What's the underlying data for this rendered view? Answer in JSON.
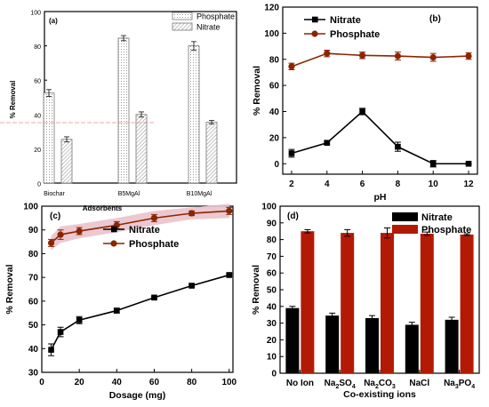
{
  "colors": {
    "nitrate": "#000000",
    "phosphate": "#8b2500",
    "nitrate_bar": "#000000",
    "phosphate_bar": "#b31a06",
    "band": "#eac2cc",
    "gridless": "none"
  },
  "chart_data": [
    {
      "panel": "(a)",
      "type": "bar",
      "xlabel": "Adsorbents",
      "ylabel": "% Removal",
      "ylim": [
        0,
        100
      ],
      "yticks": [
        0,
        20,
        40,
        60,
        80,
        100
      ],
      "grid": false,
      "legend_position": "top-right",
      "categories": [
        "Biochar",
        "B5MgAl",
        "B10MgAl"
      ],
      "series": [
        {
          "name": "Phosphate",
          "pattern": "dots",
          "values": [
            52.5,
            84.5,
            80
          ],
          "errors": [
            2,
            1.5,
            2.5
          ]
        },
        {
          "name": "Nitrate",
          "pattern": "hatch",
          "values": [
            25.5,
            40,
            35.5
          ],
          "errors": [
            1.5,
            1.5,
            1
          ]
        }
      ]
    },
    {
      "panel": "(b)",
      "type": "line",
      "xlabel": "pH",
      "ylabel": "% Removal",
      "xlim": [
        1.5,
        12.5
      ],
      "ylim": [
        -8,
        120
      ],
      "xticks": [
        2,
        4,
        6,
        8,
        10,
        12
      ],
      "yticks": [
        0,
        20,
        40,
        60,
        80,
        100,
        120
      ],
      "grid": false,
      "legend_position": "top-left",
      "x": [
        2,
        4,
        6,
        8,
        10,
        12
      ],
      "series": [
        {
          "name": "Nitrate",
          "marker": "square",
          "values": [
            8,
            16,
            40,
            13,
            0,
            0
          ],
          "errors": [
            3,
            1,
            2.5,
            3.5,
            2.5,
            0.5
          ]
        },
        {
          "name": "Phosphate",
          "marker": "circle",
          "values": [
            74.5,
            84.5,
            83,
            82.5,
            81.5,
            82.5
          ],
          "errors": [
            2.5,
            2.5,
            2.5,
            3,
            3,
            2.5
          ]
        }
      ]
    },
    {
      "panel": "(c)",
      "type": "line",
      "xlabel": "Dosage (mg)",
      "ylabel": "% Removal",
      "xlim": [
        0,
        102
      ],
      "ylim": [
        30,
        100
      ],
      "xticks": [
        0,
        20,
        40,
        60,
        80,
        100
      ],
      "yticks": [
        30,
        40,
        50,
        60,
        70,
        80,
        90,
        100
      ],
      "grid": false,
      "legend_position": "top-right",
      "x": [
        5,
        10,
        20,
        40,
        60,
        80,
        100
      ],
      "series": [
        {
          "name": "Nitrate",
          "marker": "square",
          "values": [
            39.5,
            47,
            52,
            56,
            61.5,
            66.5,
            71
          ],
          "errors": [
            2.5,
            2,
            1.5,
            1,
            0.5,
            0.5,
            0.5
          ]
        },
        {
          "name": "Phosphate",
          "marker": "circle",
          "values": [
            84.5,
            88,
            89.5,
            92,
            95,
            97,
            98
          ],
          "errors": [
            1.5,
            2,
            1.5,
            1.5,
            1.5,
            1,
            1.5
          ]
        }
      ]
    },
    {
      "panel": "(d)",
      "type": "bar",
      "xlabel": "Co-existing ions",
      "ylabel": "% Removal",
      "ylim": [
        0,
        100
      ],
      "yticks": [
        0,
        10,
        20,
        30,
        40,
        50,
        60,
        70,
        80,
        90,
        100
      ],
      "grid": false,
      "legend_position": "top-right",
      "categories": [
        {
          "base": "No Ion",
          "parts": [
            {
              "t": "No Ion",
              "sub": false
            }
          ]
        },
        {
          "base": "Na2SO4",
          "parts": [
            {
              "t": "Na",
              "sub": false
            },
            {
              "t": "2",
              "sub": true
            },
            {
              "t": "SO",
              "sub": false
            },
            {
              "t": "4",
              "sub": true
            }
          ]
        },
        {
          "base": "Na2CO3",
          "parts": [
            {
              "t": "Na",
              "sub": false
            },
            {
              "t": "2",
              "sub": true
            },
            {
              "t": "CO",
              "sub": false
            },
            {
              "t": "3",
              "sub": true
            }
          ]
        },
        {
          "base": "NaCl",
          "parts": [
            {
              "t": "NaCl",
              "sub": false
            }
          ]
        },
        {
          "base": "Na3PO4",
          "parts": [
            {
              "t": "Na",
              "sub": false
            },
            {
              "t": "3",
              "sub": true
            },
            {
              "t": "PO",
              "sub": false
            },
            {
              "t": "4",
              "sub": true
            }
          ]
        }
      ],
      "series": [
        {
          "name": "Nitrate",
          "values": [
            39,
            34.5,
            33,
            29,
            32
          ],
          "errors": [
            1,
            1.5,
            1.5,
            1.5,
            1.5
          ]
        },
        {
          "name": "Phosphate",
          "values": [
            85,
            84,
            84,
            83.5,
            83
          ],
          "errors": [
            1,
            2,
            3,
            1,
            0.5
          ]
        }
      ]
    }
  ]
}
